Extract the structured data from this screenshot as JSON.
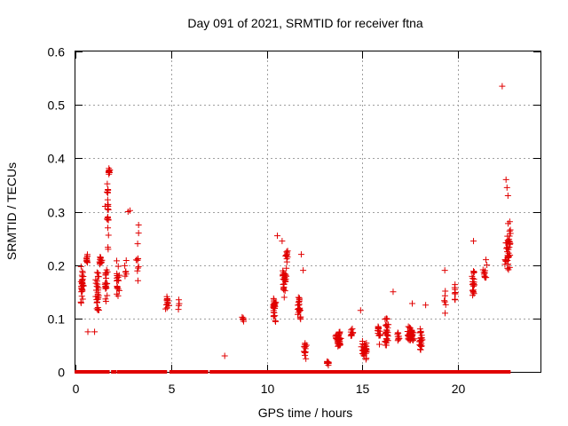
{
  "chart_data": {
    "type": "scatter",
    "title": "Day 091 of 2021, SRMTID for receiver ftna",
    "xlabel": "GPS time / hours",
    "ylabel": "SRMTID / TECUs",
    "xlim": [
      0,
      24.3
    ],
    "ylim": [
      0,
      0.6
    ],
    "x_ticks": [
      0,
      5,
      10,
      15,
      20
    ],
    "y_ticks": [
      0,
      0.1,
      0.2,
      0.3,
      0.4,
      0.5,
      0.6
    ],
    "y_tick_labels": [
      "0",
      "0.1",
      "0.2",
      "0.3",
      "0.4",
      "0.5",
      "0.6"
    ],
    "grid": true,
    "marker": "plus",
    "colors": {
      "points": "#e00000",
      "grid": "#a0a0a0",
      "axes": "#000000"
    },
    "series": [
      {
        "name": "SRMTID",
        "clusters": [
          {
            "x": 0.35,
            "xs": 0.18,
            "y": 0.16,
            "ys": 0.05,
            "n": 30
          },
          {
            "x": 0.6,
            "xs": 0.08,
            "y": 0.21,
            "ys": 0.02,
            "n": 10
          },
          {
            "x": 1.15,
            "xs": 0.12,
            "y": 0.15,
            "ys": 0.05,
            "n": 30
          },
          {
            "x": 1.3,
            "xs": 0.1,
            "y": 0.21,
            "ys": 0.02,
            "n": 12
          },
          {
            "x": 1.7,
            "xs": 0.08,
            "y": 0.28,
            "ys": 0.09,
            "n": 22
          },
          {
            "x": 1.75,
            "xs": 0.05,
            "y": 0.375,
            "ys": 0.006,
            "n": 8
          },
          {
            "x": 1.6,
            "xs": 0.1,
            "y": 0.17,
            "ys": 0.04,
            "n": 20
          },
          {
            "x": 2.2,
            "xs": 0.12,
            "y": 0.18,
            "ys": 0.05,
            "n": 18
          },
          {
            "x": 2.6,
            "xs": 0.08,
            "y": 0.19,
            "ys": 0.03,
            "n": 6
          },
          {
            "x": 3.25,
            "xs": 0.1,
            "y": 0.2,
            "ys": 0.05,
            "n": 8
          },
          {
            "x": 4.8,
            "xs": 0.15,
            "y": 0.13,
            "ys": 0.02,
            "n": 14
          },
          {
            "x": 5.4,
            "xs": 0.05,
            "y": 0.12,
            "ys": 0.015,
            "n": 3
          },
          {
            "x": 8.75,
            "xs": 0.08,
            "y": 0.1,
            "ys": 0.01,
            "n": 6
          },
          {
            "x": 10.4,
            "xs": 0.12,
            "y": 0.12,
            "ys": 0.03,
            "n": 30
          },
          {
            "x": 10.9,
            "xs": 0.15,
            "y": 0.17,
            "ys": 0.05,
            "n": 28
          },
          {
            "x": 11.05,
            "xs": 0.08,
            "y": 0.22,
            "ys": 0.02,
            "n": 10
          },
          {
            "x": 11.7,
            "xs": 0.12,
            "y": 0.12,
            "ys": 0.04,
            "n": 22
          },
          {
            "x": 12.0,
            "xs": 0.12,
            "y": 0.04,
            "ys": 0.025,
            "n": 14
          },
          {
            "x": 13.2,
            "xs": 0.08,
            "y": 0.018,
            "ys": 0.008,
            "n": 8
          },
          {
            "x": 13.75,
            "xs": 0.2,
            "y": 0.06,
            "ys": 0.02,
            "n": 40
          },
          {
            "x": 14.45,
            "xs": 0.1,
            "y": 0.07,
            "ys": 0.02,
            "n": 10
          },
          {
            "x": 15.1,
            "xs": 0.2,
            "y": 0.04,
            "ys": 0.02,
            "n": 40
          },
          {
            "x": 15.85,
            "xs": 0.12,
            "y": 0.07,
            "ys": 0.03,
            "n": 16
          },
          {
            "x": 16.25,
            "xs": 0.15,
            "y": 0.07,
            "ys": 0.04,
            "n": 28
          },
          {
            "x": 16.85,
            "xs": 0.1,
            "y": 0.065,
            "ys": 0.02,
            "n": 10
          },
          {
            "x": 17.5,
            "xs": 0.25,
            "y": 0.07,
            "ys": 0.02,
            "n": 50
          },
          {
            "x": 18.05,
            "xs": 0.12,
            "y": 0.06,
            "ys": 0.03,
            "n": 25
          },
          {
            "x": 19.3,
            "xs": 0.08,
            "y": 0.13,
            "ys": 0.04,
            "n": 6
          },
          {
            "x": 19.85,
            "xs": 0.06,
            "y": 0.15,
            "ys": 0.04,
            "n": 8
          },
          {
            "x": 20.8,
            "xs": 0.12,
            "y": 0.16,
            "ys": 0.04,
            "n": 22
          },
          {
            "x": 21.4,
            "xs": 0.12,
            "y": 0.18,
            "ys": 0.02,
            "n": 10
          },
          {
            "x": 22.6,
            "xs": 0.2,
            "y": 0.23,
            "ys": 0.07,
            "n": 40
          }
        ],
        "points": [
          [
            1.75,
            0.381
          ],
          [
            1.8,
            0.378
          ],
          [
            2.75,
            0.3
          ],
          [
            2.85,
            0.302
          ],
          [
            3.3,
            0.275
          ],
          [
            3.3,
            0.26
          ],
          [
            3.25,
            0.24
          ],
          [
            1.55,
            0.31
          ],
          [
            1.7,
            0.34
          ],
          [
            7.8,
            0.03
          ],
          [
            10.55,
            0.255
          ],
          [
            10.8,
            0.245
          ],
          [
            22.3,
            0.535
          ],
          [
            22.5,
            0.36
          ],
          [
            22.55,
            0.345
          ],
          [
            22.6,
            0.33
          ],
          [
            22.45,
            0.21
          ],
          [
            0.65,
            0.075
          ],
          [
            1.0,
            0.075
          ],
          [
            5.4,
            0.135
          ],
          [
            11.8,
            0.22
          ],
          [
            11.9,
            0.19
          ],
          [
            14.9,
            0.115
          ],
          [
            16.6,
            0.15
          ],
          [
            17.6,
            0.128
          ],
          [
            18.3,
            0.125
          ],
          [
            19.3,
            0.19
          ],
          [
            20.8,
            0.245
          ],
          [
            21.45,
            0.21
          ],
          [
            21.5,
            0.2
          ]
        ]
      }
    ],
    "zero_points_x": [
      0.1,
      0.2,
      0.3,
      0.45,
      0.55,
      0.65,
      0.75,
      0.85,
      0.95,
      1.05,
      1.2,
      1.35,
      1.5,
      1.65,
      2.0,
      2.3,
      2.45,
      2.55,
      2.65,
      2.8,
      2.95,
      3.05,
      3.15,
      3.3,
      3.45,
      3.55,
      3.65,
      3.75,
      3.85,
      3.95,
      4.05,
      4.2,
      4.3,
      4.4,
      4.5,
      4.65,
      5.05,
      5.15,
      5.25,
      5.35,
      5.45,
      5.55,
      5.65,
      5.75,
      5.85,
      5.95,
      6.05,
      6.15,
      6.25,
      6.35,
      6.5,
      6.65,
      6.8,
      7.15,
      7.3,
      7.45,
      7.6,
      7.75,
      7.9,
      8.05,
      8.2,
      8.45,
      8.6,
      8.75,
      8.9,
      9.05,
      9.2,
      9.35,
      9.5,
      9.65,
      9.8,
      9.95,
      10.05,
      10.15,
      10.3,
      10.45,
      10.65,
      10.8,
      10.95,
      11.1,
      11.25,
      11.4,
      11.55,
      11.7,
      11.85,
      12.0,
      12.15,
      12.3,
      12.45,
      12.6,
      12.75,
      12.9,
      13.05,
      13.2,
      13.35,
      13.45,
      13.6,
      13.75,
      13.9,
      14.05,
      14.2,
      14.35,
      14.5,
      14.65,
      14.8,
      15.0,
      15.2,
      15.4,
      15.55,
      15.7,
      15.85,
      16.0,
      16.15,
      16.3,
      16.45,
      16.6,
      16.75,
      16.9,
      17.05,
      17.2,
      17.35,
      17.55,
      17.7,
      17.85,
      18.0,
      18.15,
      18.3,
      18.45,
      18.6,
      18.75,
      18.9,
      19.05,
      19.2,
      19.35,
      19.5,
      19.65,
      19.8,
      19.95,
      20.1,
      20.25,
      20.4,
      20.55,
      20.7,
      20.85,
      21.0,
      21.15,
      21.3,
      21.45,
      21.6,
      21.75,
      21.9,
      22.05,
      22.2,
      22.35,
      22.5,
      22.6
    ]
  }
}
